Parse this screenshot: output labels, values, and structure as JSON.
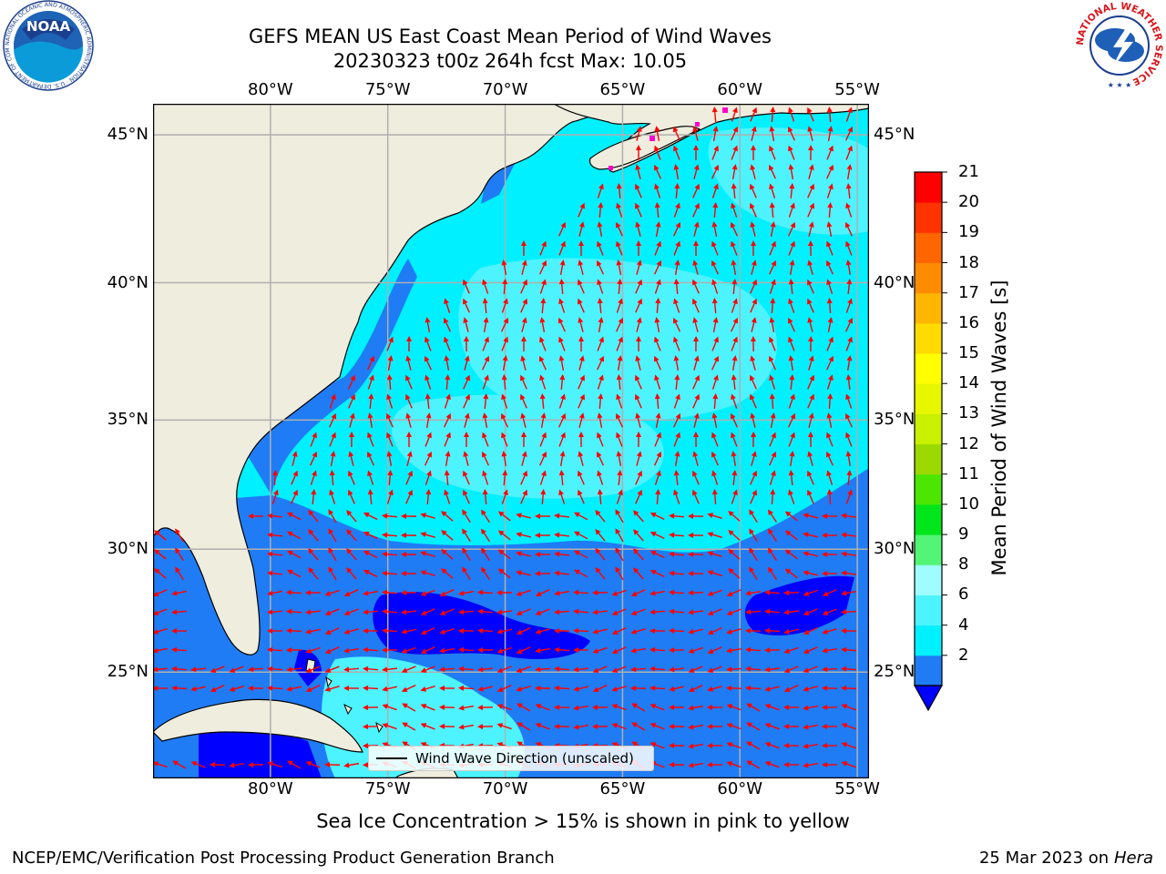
{
  "title": {
    "line1": "GEFS MEAN US East Coast Mean Period of Wind Waves",
    "line2": "20230323 t00z 264h fcst   Max: 10.05"
  },
  "map": {
    "lon_range": [
      -85,
      -54.5
    ],
    "lat_range": [
      20.5,
      46
    ],
    "lon_ticks": [
      "80°W",
      "75°W",
      "70°W",
      "65°W",
      "60°W",
      "55°W"
    ],
    "lat_ticks": [
      "45°N",
      "40°N",
      "35°N",
      "30°N",
      "25°N"
    ],
    "land_color": "#efedde",
    "grid": true
  },
  "colorbar": {
    "label": "Mean Period of Wind Waves [s]",
    "ticks": [
      "21",
      "20",
      "19",
      "18",
      "17",
      "16",
      "15",
      "14",
      "13",
      "12",
      "11",
      "10",
      "9",
      "8",
      "6",
      "4",
      "2"
    ],
    "colors": [
      "#1f7cf5",
      "#00f0ff",
      "#4df3ff",
      "#9ffcff",
      "#52f575",
      "#00e61a",
      "#4de600",
      "#9bd900",
      "#c8f000",
      "#e6f700",
      "#ffff00",
      "#ffdb00",
      "#ffb600",
      "#ff8c00",
      "#ff6600",
      "#ff3300",
      "#ff0000"
    ],
    "under_color": "#0000ff"
  },
  "legend": {
    "label": "Wind Wave Direction (unscaled)"
  },
  "note": "Sea Ice Concentration > 15% is shown in pink to yellow",
  "footer": {
    "credit": "NCEP/EMC/Verification Post Processing Product Generation Branch",
    "date": "25 Mar 2023 on",
    "machine": "Hera"
  },
  "logos": {
    "noaa_text": "NOAA",
    "noaa_ring": "NATIONAL OCEANIC AND ATMOSPHERIC ADMINISTRATION · U.S. DEPARTMENT OF COMMERCE",
    "nws_ring": "NATIONAL WEATHER SERVICE"
  },
  "colors": {
    "arrow": "#ff0000",
    "ocean_mid": "#00f0ff",
    "ocean_light": "#4df3ff",
    "ocean_blue": "#1f7cf5",
    "ocean_deep": "#0000ff"
  }
}
